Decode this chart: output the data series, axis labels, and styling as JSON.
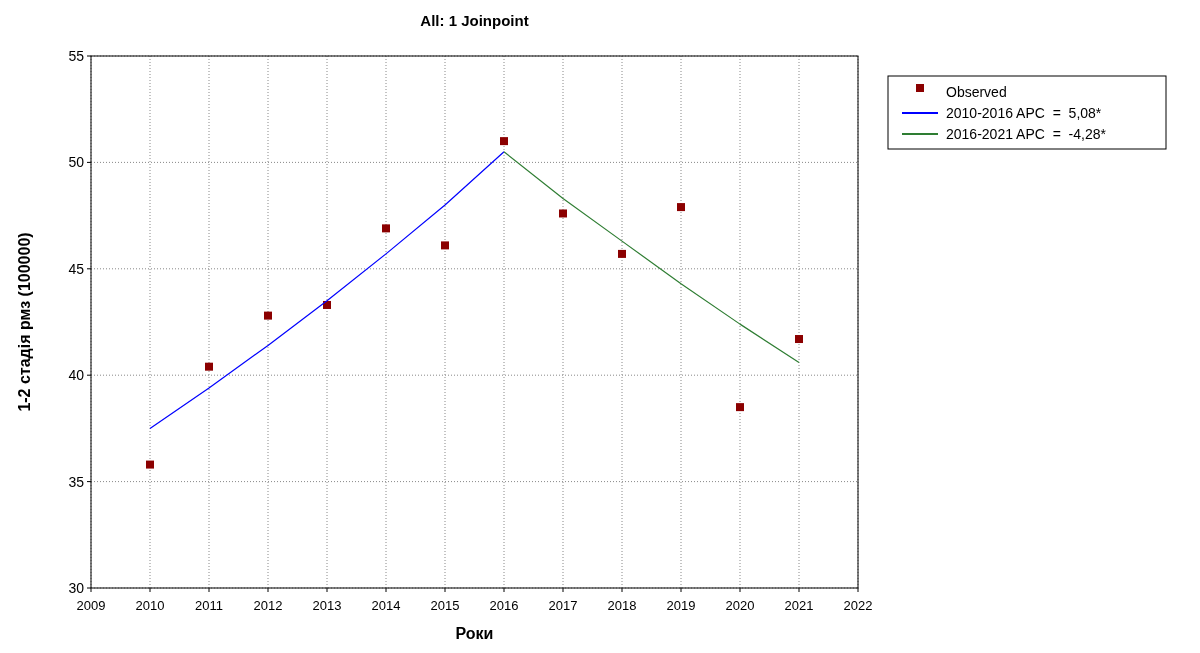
{
  "chart_data": {
    "type": "scatter",
    "title": "All: 1 Joinpoint",
    "xlabel": "Роки",
    "ylabel": "1-2 стадія рмз (100000)",
    "x": [
      2010,
      2011,
      2012,
      2013,
      2014,
      2015,
      2016,
      2017,
      2018,
      2019,
      2020,
      2021
    ],
    "series": [
      {
        "name": "Observed",
        "marker": "square",
        "color": "#8b0000",
        "values": [
          35.8,
          40.4,
          42.8,
          43.3,
          46.9,
          46.1,
          51.0,
          47.6,
          45.7,
          47.9,
          38.5,
          41.7
        ]
      },
      {
        "name": "2010-2016 APC  =  5,08*",
        "type": "line",
        "color": "#0000ff",
        "x": [
          2010,
          2011,
          2012,
          2013,
          2014,
          2015,
          2016
        ],
        "values": [
          37.5,
          39.4,
          41.4,
          43.5,
          45.7,
          48.0,
          50.5
        ]
      },
      {
        "name": "2016-2021 APC  =  -4,28*",
        "type": "line",
        "color": "#2e7d32",
        "x": [
          2016,
          2017,
          2018,
          2019,
          2020,
          2021
        ],
        "values": [
          50.5,
          48.3,
          46.3,
          44.3,
          42.4,
          40.6
        ]
      }
    ],
    "xlim": [
      2009,
      2022
    ],
    "xticks": [
      2009,
      2010,
      2011,
      2012,
      2013,
      2014,
      2015,
      2016,
      2017,
      2018,
      2019,
      2020,
      2021,
      2022
    ],
    "ylim": [
      30,
      55
    ],
    "yticks": [
      30,
      35,
      40,
      45,
      50,
      55
    ],
    "grid": true,
    "legend": "top right",
    "line_style": "solid"
  }
}
